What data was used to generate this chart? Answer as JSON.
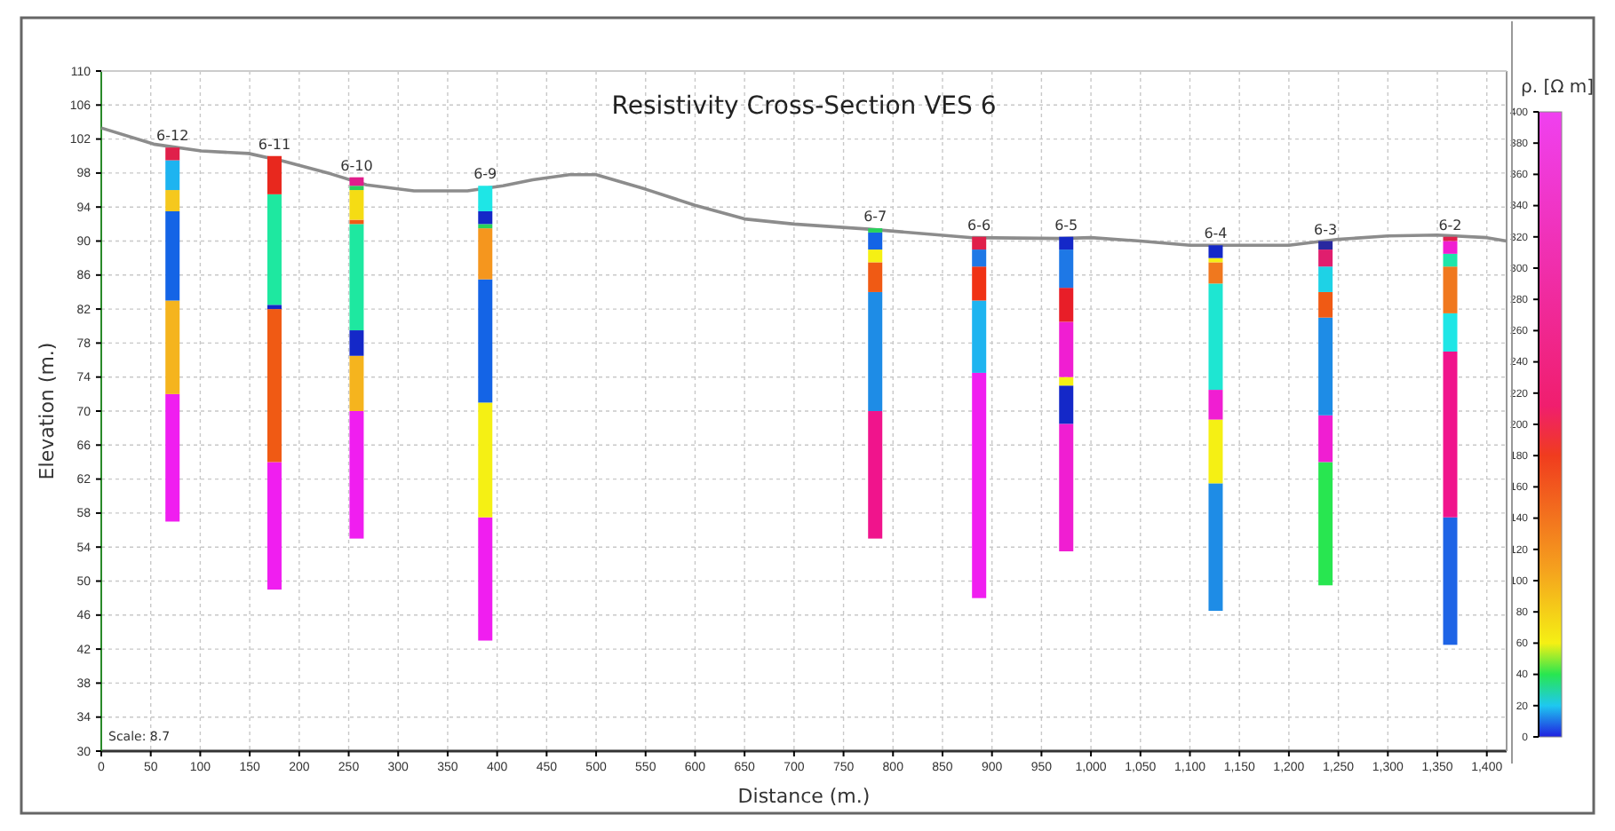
{
  "chart_data": {
    "type": "bar",
    "title": "Resistivity Cross-Section VES 6",
    "xlabel": "Distance (m.)",
    "ylabel": "Elevation (m.)",
    "clabel": "ρ. [Ω m]",
    "xlim": [
      0,
      1420
    ],
    "ylim": [
      30,
      110
    ],
    "xticks": [
      0,
      50,
      100,
      150,
      200,
      250,
      300,
      350,
      400,
      450,
      500,
      550,
      600,
      650,
      700,
      750,
      800,
      850,
      900,
      950,
      {
        "value": 1000,
        "label": "1,000"
      },
      {
        "value": 1050,
        "label": "1,050"
      },
      {
        "value": 1100,
        "label": "1,100"
      },
      {
        "value": 1150,
        "label": "1,150"
      },
      {
        "value": 1200,
        "label": "1,200"
      },
      {
        "value": 1250,
        "label": "1,250"
      },
      {
        "value": 1300,
        "label": "1,300"
      },
      {
        "value": 1350,
        "label": "1,350"
      },
      {
        "value": 1400,
        "label": "1,400"
      }
    ],
    "yticks": [
      30,
      34,
      38,
      42,
      46,
      50,
      54,
      58,
      62,
      66,
      70,
      74,
      78,
      82,
      86,
      90,
      94,
      98,
      102,
      106,
      110
    ],
    "clim": [
      0,
      400
    ],
    "cticks": [
      0,
      20,
      40,
      60,
      80,
      100,
      120,
      140,
      160,
      180,
      200,
      220,
      240,
      260,
      280,
      300,
      320,
      340,
      360,
      380,
      400
    ],
    "grid": true,
    "series": [
      {
        "x": [
          72,
          175,
          258,
          388,
          782,
          887,
          975,
          1126,
          1237,
          1363
        ],
        "base": [
          57,
          49,
          55,
          43,
          55,
          48,
          53.5,
          46.5,
          49.5,
          42.5
        ],
        "values": [
          15,
          15,
          15,
          14.5,
          15,
          26.5,
          15,
          15,
          14.5,
          15
        ],
        "colors": [
          "#f01ef0",
          "#f01ef0",
          "#f01ef0",
          "#f01ef0",
          "#f0148c",
          "#f01ef0",
          "#f01ed2",
          "#1e8ce6",
          "#28e650",
          "#1e64e6"
        ]
      },
      {
        "x": [
          72,
          175,
          258,
          388,
          782,
          887,
          975,
          1126,
          1237,
          1363
        ],
        "base": [
          72,
          64,
          70,
          57.5,
          70,
          74.5,
          68.5,
          61.5,
          64,
          57.5
        ],
        "values": [
          11,
          18,
          6.5,
          13.5,
          14,
          8.5,
          4.5,
          7.5,
          5.5,
          19.5
        ],
        "colors": [
          "#f5b41e",
          "#f05a14",
          "#f5b41e",
          "#f5f014",
          "#1e8ce6",
          "#1eb4f0",
          "#1428c8",
          "#f5f014",
          "#f01ed2",
          "#f0148c"
        ]
      },
      {
        "x": [
          72,
          175,
          258,
          388,
          782,
          887,
          975,
          1126,
          1237,
          1363
        ],
        "base": [
          83,
          82,
          76.5,
          71,
          84,
          83,
          73,
          69,
          69.5,
          77
        ],
        "values": [
          10.5,
          0.5,
          3,
          14.5,
          3.5,
          4,
          1,
          3.5,
          11.5,
          4.5
        ],
        "colors": [
          "#1464e6",
          "#1428c8",
          "#1428c8",
          "#1464e6",
          "#f05a14",
          "#f03214",
          "#f5f014",
          "#f01ed2",
          "#1e8ce6",
          "#1ee6e6"
        ]
      },
      {
        "x": [
          72,
          175,
          258,
          388,
          782,
          887,
          975,
          1126,
          1237,
          1363
        ],
        "base": [
          93.5,
          82.5,
          79.5,
          85.5,
          87.5,
          87,
          74,
          72.5,
          81,
          81.5
        ],
        "values": [
          2.5,
          13,
          12.5,
          6,
          1.5,
          2,
          6.5,
          12.5,
          3,
          5.5
        ],
        "colors": [
          "#f5c81e",
          "#1ee8a0",
          "#1ee8a0",
          "#f5961e",
          "#f5f014",
          "#1e78e6",
          "#f01ed2",
          "#1ee6d2",
          "#f05a14",
          "#f0781e"
        ]
      },
      {
        "x": [
          72,
          175,
          258,
          388,
          782,
          887,
          975,
          1126,
          1237,
          1363
        ],
        "base": [
          96,
          95.5,
          92,
          91.5,
          89,
          89,
          80.5,
          85,
          84,
          87
        ],
        "values": [
          3.5,
          4.5,
          0.5,
          0.5,
          2,
          1.5,
          4,
          2.5,
          3,
          1.5
        ],
        "colors": [
          "#1eb4f0",
          "#e8281e",
          "#f05a14",
          "#28d25a",
          "#1464e6",
          "#e0204a",
          "#e81e28",
          "#f0781e",
          "#1ed2e6",
          "#1ee6aa"
        ]
      },
      {
        "x": [
          72,
          258,
          388,
          782,
          975,
          1126,
          1237,
          1363
        ],
        "base": [
          99.5,
          92.5,
          92,
          91,
          84.5,
          87.5,
          87,
          88.5
        ],
        "values": [
          1.5,
          3.5,
          1.5,
          0.5,
          4.5,
          0.5,
          2,
          1.5
        ],
        "colors": [
          "#e0204a",
          "#f5dc14",
          "#1428c8",
          "#28d25a",
          "#1e78e6",
          "#f5f014",
          "#e01e6e",
          "#f01ed2"
        ]
      },
      {
        "x": [
          258,
          388,
          975,
          1126,
          1237,
          1363
        ],
        "base": [
          96,
          93.5,
          89,
          88,
          89,
          90
        ],
        "values": [
          0.5,
          3,
          1.5,
          1.5,
          1,
          0.5
        ],
        "colors": [
          "#28d25a",
          "#1ee6e6",
          "#1428c8",
          "#1428c8",
          "#2828a0",
          "#e0204a"
        ]
      },
      {
        "x": [
          258
        ],
        "base": [
          96.5
        ],
        "values": [
          1
        ],
        "colors": [
          "#e01e8c"
        ]
      },
      {
        "type": "line",
        "color": "#8c8c8c",
        "x": [
          0,
          53,
          101,
          149,
          184,
          232,
          268,
          316,
          370,
          406,
          436,
          473,
          500,
          550,
          600,
          650,
          700,
          776,
          880,
          970,
          1000,
          1050,
          1100,
          1150,
          1200,
          1250,
          1300,
          1350,
          1400,
          1420
        ],
        "values": [
          103.3,
          101.4,
          100.6,
          100.3,
          99.4,
          97.9,
          96.6,
          95.9,
          95.9,
          96.5,
          97.2,
          97.8,
          97.8,
          96.1,
          94.2,
          92.6,
          92,
          91.4,
          90.4,
          90.3,
          90.4,
          90,
          89.5,
          89.5,
          89.5,
          90.2,
          90.6,
          90.7,
          90.4,
          90
        ]
      }
    ],
    "annotations": [
      {
        "text": "6-12",
        "x": 72,
        "y": 101
      },
      {
        "text": "6-11",
        "x": 175,
        "y": 100
      },
      {
        "text": "6-10",
        "x": 258,
        "y": 97.5
      },
      {
        "text": "6-9",
        "x": 388,
        "y": 96.5
      },
      {
        "text": "6-7",
        "x": 782,
        "y": 91.5
      },
      {
        "text": "6-6",
        "x": 887,
        "y": 90.5
      },
      {
        "text": "6-5",
        "x": 975,
        "y": 90.5
      },
      {
        "text": "6-4",
        "x": 1126,
        "y": 89.5
      },
      {
        "text": "6-3",
        "x": 1237,
        "y": 90
      },
      {
        "text": "6-2",
        "x": 1363,
        "y": 90.5
      },
      "Scale: 8.7"
    ]
  }
}
